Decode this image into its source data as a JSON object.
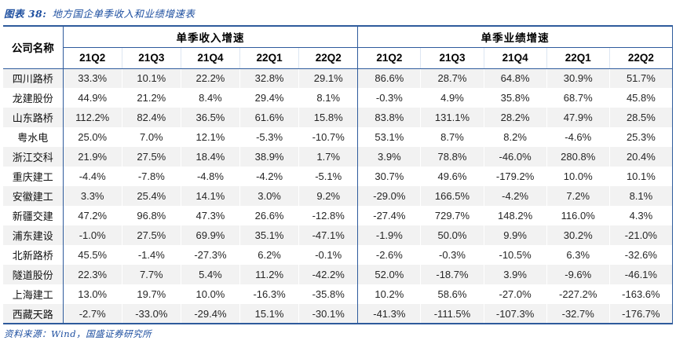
{
  "figure": {
    "label": "图表 38:",
    "title": "地方国企单季收入和业绩增速表"
  },
  "source_note": "资料来源：Wind，国盛证券研究所",
  "colors": {
    "border_blue": "#2E5B9C",
    "title_blue": "#1E4FA0",
    "stripe_gray": "#F2F2F2",
    "header_text": "#000000",
    "data_text": "#262626"
  },
  "chart_data": {
    "type": "table",
    "title": "图表 38: 地方国企单季收入和业绩增速表",
    "company_header": "公司名称",
    "sections": [
      {
        "key": "revenue",
        "label": "单季收入增速",
        "quarters": [
          "21Q2",
          "21Q3",
          "21Q4",
          "22Q1",
          "22Q2"
        ]
      },
      {
        "key": "profit",
        "label": "单季业绩增速",
        "quarters": [
          "21Q2",
          "21Q3",
          "21Q4",
          "22Q1",
          "22Q2"
        ]
      }
    ],
    "rows": [
      {
        "company": "四川路桥",
        "revenue": [
          "33.3%",
          "10.1%",
          "22.2%",
          "32.8%",
          "29.1%"
        ],
        "profit": [
          "86.6%",
          "28.7%",
          "64.8%",
          "30.9%",
          "51.7%"
        ]
      },
      {
        "company": "龙建股份",
        "revenue": [
          "44.9%",
          "21.2%",
          "8.4%",
          "29.4%",
          "8.1%"
        ],
        "profit": [
          "-0.3%",
          "4.9%",
          "35.8%",
          "68.7%",
          "45.8%"
        ]
      },
      {
        "company": "山东路桥",
        "revenue": [
          "112.2%",
          "82.4%",
          "36.5%",
          "61.6%",
          "15.8%"
        ],
        "profit": [
          "83.8%",
          "131.1%",
          "28.2%",
          "47.9%",
          "28.5%"
        ]
      },
      {
        "company": "粤水电",
        "revenue": [
          "25.0%",
          "7.0%",
          "12.1%",
          "-5.3%",
          "-10.7%"
        ],
        "profit": [
          "53.1%",
          "8.7%",
          "8.2%",
          "-4.6%",
          "25.3%"
        ]
      },
      {
        "company": "浙江交科",
        "revenue": [
          "21.9%",
          "27.5%",
          "18.4%",
          "38.9%",
          "1.7%"
        ],
        "profit": [
          "3.9%",
          "78.8%",
          "-46.0%",
          "280.8%",
          "20.4%"
        ]
      },
      {
        "company": "重庆建工",
        "revenue": [
          "-4.4%",
          "-7.8%",
          "-4.8%",
          "-4.2%",
          "-5.1%"
        ],
        "profit": [
          "30.7%",
          "49.6%",
          "-179.2%",
          "10.0%",
          "10.1%"
        ]
      },
      {
        "company": "安徽建工",
        "revenue": [
          "3.3%",
          "25.4%",
          "14.1%",
          "3.0%",
          "9.2%"
        ],
        "profit": [
          "-29.0%",
          "166.5%",
          "-4.2%",
          "7.2%",
          "8.1%"
        ]
      },
      {
        "company": "新疆交建",
        "revenue": [
          "47.2%",
          "96.8%",
          "47.3%",
          "26.6%",
          "-12.8%"
        ],
        "profit": [
          "-27.4%",
          "729.7%",
          "148.2%",
          "116.0%",
          "4.3%"
        ]
      },
      {
        "company": "浦东建设",
        "revenue": [
          "-1.0%",
          "27.5%",
          "69.9%",
          "35.1%",
          "-47.1%"
        ],
        "profit": [
          "-1.9%",
          "50.0%",
          "9.9%",
          "30.2%",
          "-21.0%"
        ]
      },
      {
        "company": "北新路桥",
        "revenue": [
          "45.5%",
          "-1.4%",
          "-27.3%",
          "6.2%",
          "-0.1%"
        ],
        "profit": [
          "-2.6%",
          "-0.3%",
          "-10.5%",
          "6.3%",
          "-32.6%"
        ]
      },
      {
        "company": "隧道股份",
        "revenue": [
          "22.3%",
          "7.7%",
          "5.4%",
          "11.2%",
          "-42.2%"
        ],
        "profit": [
          "52.0%",
          "-18.7%",
          "3.9%",
          "-9.6%",
          "-46.1%"
        ]
      },
      {
        "company": "上海建工",
        "revenue": [
          "13.0%",
          "19.7%",
          "10.0%",
          "-16.3%",
          "-35.8%"
        ],
        "profit": [
          "10.2%",
          "58.6%",
          "-27.0%",
          "-227.2%",
          "-163.6%"
        ]
      },
      {
        "company": "西藏天路",
        "revenue": [
          "-2.7%",
          "-33.0%",
          "-29.4%",
          "15.1%",
          "-30.1%"
        ],
        "profit": [
          "-41.3%",
          "-111.5%",
          "-107.3%",
          "-32.7%",
          "-176.7%"
        ]
      }
    ]
  }
}
